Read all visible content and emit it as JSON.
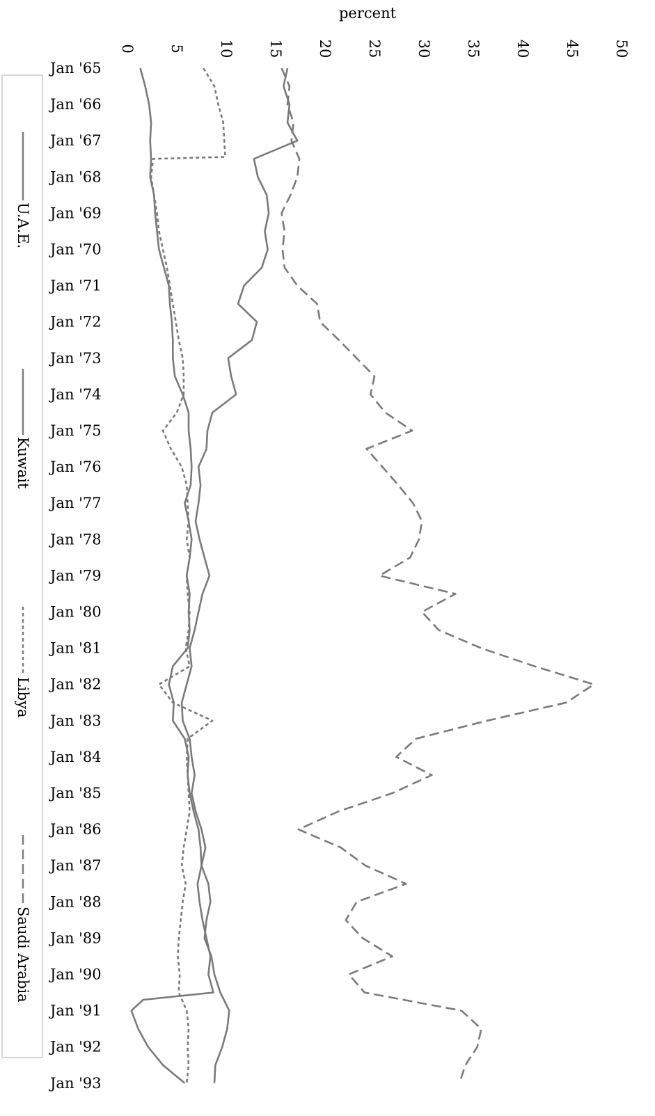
{
  "chart_data": {
    "type": "line",
    "orientation": "rotated-90",
    "title": "",
    "xlabel": "",
    "ylabel": "percent",
    "x_ticks": [
      "Jan '65",
      "Jan '66",
      "Jan '67",
      "Jan '68",
      "Jan '69",
      "Jan '70",
      "Jan '71",
      "Jan '72",
      "Jan '73",
      "Jan '74",
      "Jan '75",
      "Jan '76",
      "Jan '77",
      "Jan '78",
      "Jan '79",
      "Jan '80",
      "Jan '81",
      "Jan '82",
      "Jan '83",
      "Jan '84",
      "Jan '85",
      "Jan '86",
      "Jan '87",
      "Jan '88",
      "Jan '89",
      "Jan '90",
      "Jan '91",
      "Jan '92",
      "Jan '93"
    ],
    "y_ticks": [
      "0",
      "5",
      "10",
      "15",
      "20",
      "25",
      "30",
      "35",
      "40",
      "45",
      "50"
    ],
    "ylim": [
      0,
      50
    ],
    "xlim": [
      1965,
      1993
    ],
    "grid": false,
    "legend_position": "left",
    "colors": {
      "series": "#7a7a7a",
      "axis_text": "#000000",
      "legend_border": "#bbbbbb"
    },
    "series": [
      {
        "name": "U.A.E.",
        "style": "solid",
        "x": [
          1965,
          1965.5,
          1966,
          1966.5,
          1967,
          1967.5,
          1968,
          1968.5,
          1969,
          1969.5,
          1970,
          1970.5,
          1971,
          1971.5,
          1972,
          1972.5,
          1973,
          1973.5,
          1974,
          1974.5,
          1975,
          1975.5,
          1976,
          1976.5,
          1977,
          1977.5,
          1978,
          1978.5,
          1979,
          1979.5,
          1980,
          1980.5,
          1981,
          1981.5,
          1982,
          1982.5,
          1983,
          1983.5,
          1984,
          1984.5,
          1985,
          1985.5,
          1986,
          1986.5,
          1987,
          1987.5,
          1988,
          1988.5,
          1989,
          1989.5,
          1990,
          1990.3,
          1990.5,
          1990.7,
          1991,
          1991.5,
          1992,
          1992.5,
          1993
        ],
        "values": [
          1.3,
          1.8,
          2.2,
          2.4,
          2.3,
          2.4,
          2.3,
          2.7,
          2.8,
          3.0,
          3.2,
          3.7,
          4.2,
          4.3,
          4.5,
          4.6,
          4.6,
          4.8,
          5.6,
          6.2,
          6.2,
          6.4,
          6.5,
          6.4,
          5.8,
          6.2,
          6.5,
          6.3,
          6.0,
          6.3,
          6.2,
          6.3,
          6.1,
          4.6,
          4.2,
          4.7,
          4.6,
          5.8,
          6.2,
          6.1,
          6.3,
          6.7,
          7.2,
          7.4,
          7.5,
          7.1,
          7.3,
          7.6,
          8.0,
          8.4,
          8.2,
          8.5,
          8.7,
          1.6,
          0.4,
          1.1,
          2.1,
          3.6,
          5.8
        ]
      },
      {
        "name": "Kuwait",
        "style": "solid",
        "x": [
          1965,
          1965.5,
          1966,
          1966.5,
          1967,
          1967.5,
          1968,
          1968.5,
          1969,
          1969.5,
          1970,
          1970.5,
          1971,
          1971.5,
          1972,
          1972.5,
          1973,
          1973.5,
          1974,
          1974.5,
          1975,
          1975.5,
          1976,
          1976.5,
          1977,
          1977.5,
          1978,
          1978.5,
          1979,
          1979.5,
          1980,
          1980.5,
          1981,
          1981.5,
          1982,
          1982.5,
          1983,
          1983.5,
          1984,
          1984.5,
          1985,
          1985.5,
          1986,
          1986.5,
          1987,
          1987.5,
          1988,
          1988.5,
          1989,
          1989.5,
          1990,
          1990.5,
          1991,
          1991.5,
          1992,
          1992.5,
          1993
        ],
        "values": [
          16.2,
          15.8,
          16.4,
          16.2,
          17.2,
          12.8,
          13.2,
          14.1,
          14.3,
          13.9,
          14.2,
          13.6,
          11.8,
          11.2,
          13.1,
          12.6,
          10.2,
          10.5,
          11.0,
          8.6,
          8.1,
          8.0,
          7.2,
          7.4,
          7.2,
          6.9,
          7.3,
          7.8,
          8.3,
          7.6,
          7.2,
          6.8,
          6.3,
          6.5,
          6.0,
          5.5,
          5.6,
          6.3,
          6.5,
          6.8,
          6.5,
          6.9,
          7.5,
          7.9,
          7.5,
          8.2,
          8.4,
          8.0,
          7.8,
          8.5,
          8.8,
          9.4,
          10.3,
          10.1,
          9.6,
          8.9,
          8.8
        ]
      },
      {
        "name": "Libya",
        "style": "dotted",
        "x": [
          1965,
          1965.5,
          1966,
          1966.5,
          1967,
          1967.45,
          1967.5,
          1968,
          1968.5,
          1969,
          1969.5,
          1970,
          1970.5,
          1971,
          1971.5,
          1972,
          1972.5,
          1973,
          1973.5,
          1974,
          1974.5,
          1975,
          1975.5,
          1976,
          1976.5,
          1977,
          1977.5,
          1978,
          1978.5,
          1979,
          1979.5,
          1980,
          1980.5,
          1981,
          1981.5,
          1982,
          1982.5,
          1983,
          1983.5,
          1984,
          1984.5,
          1985,
          1985.5,
          1986,
          1986.5,
          1987,
          1987.5,
          1988,
          1988.5,
          1989,
          1989.5,
          1990,
          1990.5,
          1991,
          1991.5,
          1992,
          1992.5,
          1993
        ],
        "values": [
          7.7,
          8.8,
          9.2,
          9.7,
          9.8,
          9.9,
          2.6,
          2.4,
          2.7,
          3.0,
          3.2,
          3.6,
          4.0,
          4.3,
          4.6,
          4.9,
          5.2,
          5.6,
          5.7,
          5.7,
          5.0,
          3.6,
          4.4,
          5.5,
          6.0,
          6.1,
          6.2,
          6.0,
          6.3,
          6.0,
          6.1,
          6.3,
          6.2,
          5.9,
          6.3,
          3.2,
          4.6,
          8.6,
          6.1,
          6.0,
          6.1,
          6.2,
          6.3,
          6.0,
          5.7,
          5.5,
          5.9,
          5.6,
          5.4,
          5.2,
          5.1,
          5.3,
          5.2,
          6.0,
          6.2,
          6.1,
          6.2,
          6.0
        ]
      },
      {
        "name": "Saudi Arabia",
        "style": "dashed",
        "x": [
          1965,
          1965.5,
          1966,
          1966.5,
          1967,
          1967.5,
          1968,
          1968.5,
          1969,
          1969.5,
          1970,
          1970.5,
          1971,
          1971.5,
          1972,
          1972.5,
          1973,
          1973.5,
          1974,
          1974.5,
          1975,
          1975.5,
          1976,
          1976.5,
          1977,
          1977.5,
          1978,
          1978.5,
          1979,
          1979.5,
          1980,
          1980.5,
          1981,
          1981.5,
          1982,
          1982.5,
          1983,
          1983.5,
          1984,
          1984.5,
          1985,
          1985.5,
          1986,
          1986.5,
          1987,
          1987.5,
          1988,
          1988.5,
          1989,
          1989.5,
          1990,
          1990.5,
          1991,
          1991.5,
          1992,
          1992.5,
          1993
        ],
        "values": [
          15.6,
          16.4,
          16.2,
          16.8,
          16.6,
          17.4,
          17.2,
          16.5,
          15.6,
          15.9,
          15.7,
          15.9,
          17.2,
          19.2,
          19.5,
          21.4,
          23.2,
          25.0,
          24.6,
          26.1,
          28.8,
          24.2,
          25.8,
          27.4,
          28.9,
          29.8,
          29.5,
          28.6,
          25.5,
          33.2,
          29.8,
          31.5,
          35.8,
          41.2,
          47.2,
          44.4,
          36.4,
          29.2,
          27.2,
          30.8,
          26.8,
          21.4,
          17.3,
          21.6,
          24.1,
          28.2,
          23.2,
          22.1,
          23.8,
          26.8,
          22.4,
          24.0,
          33.8,
          35.8,
          35.4,
          34.2,
          33.6
        ]
      }
    ]
  }
}
